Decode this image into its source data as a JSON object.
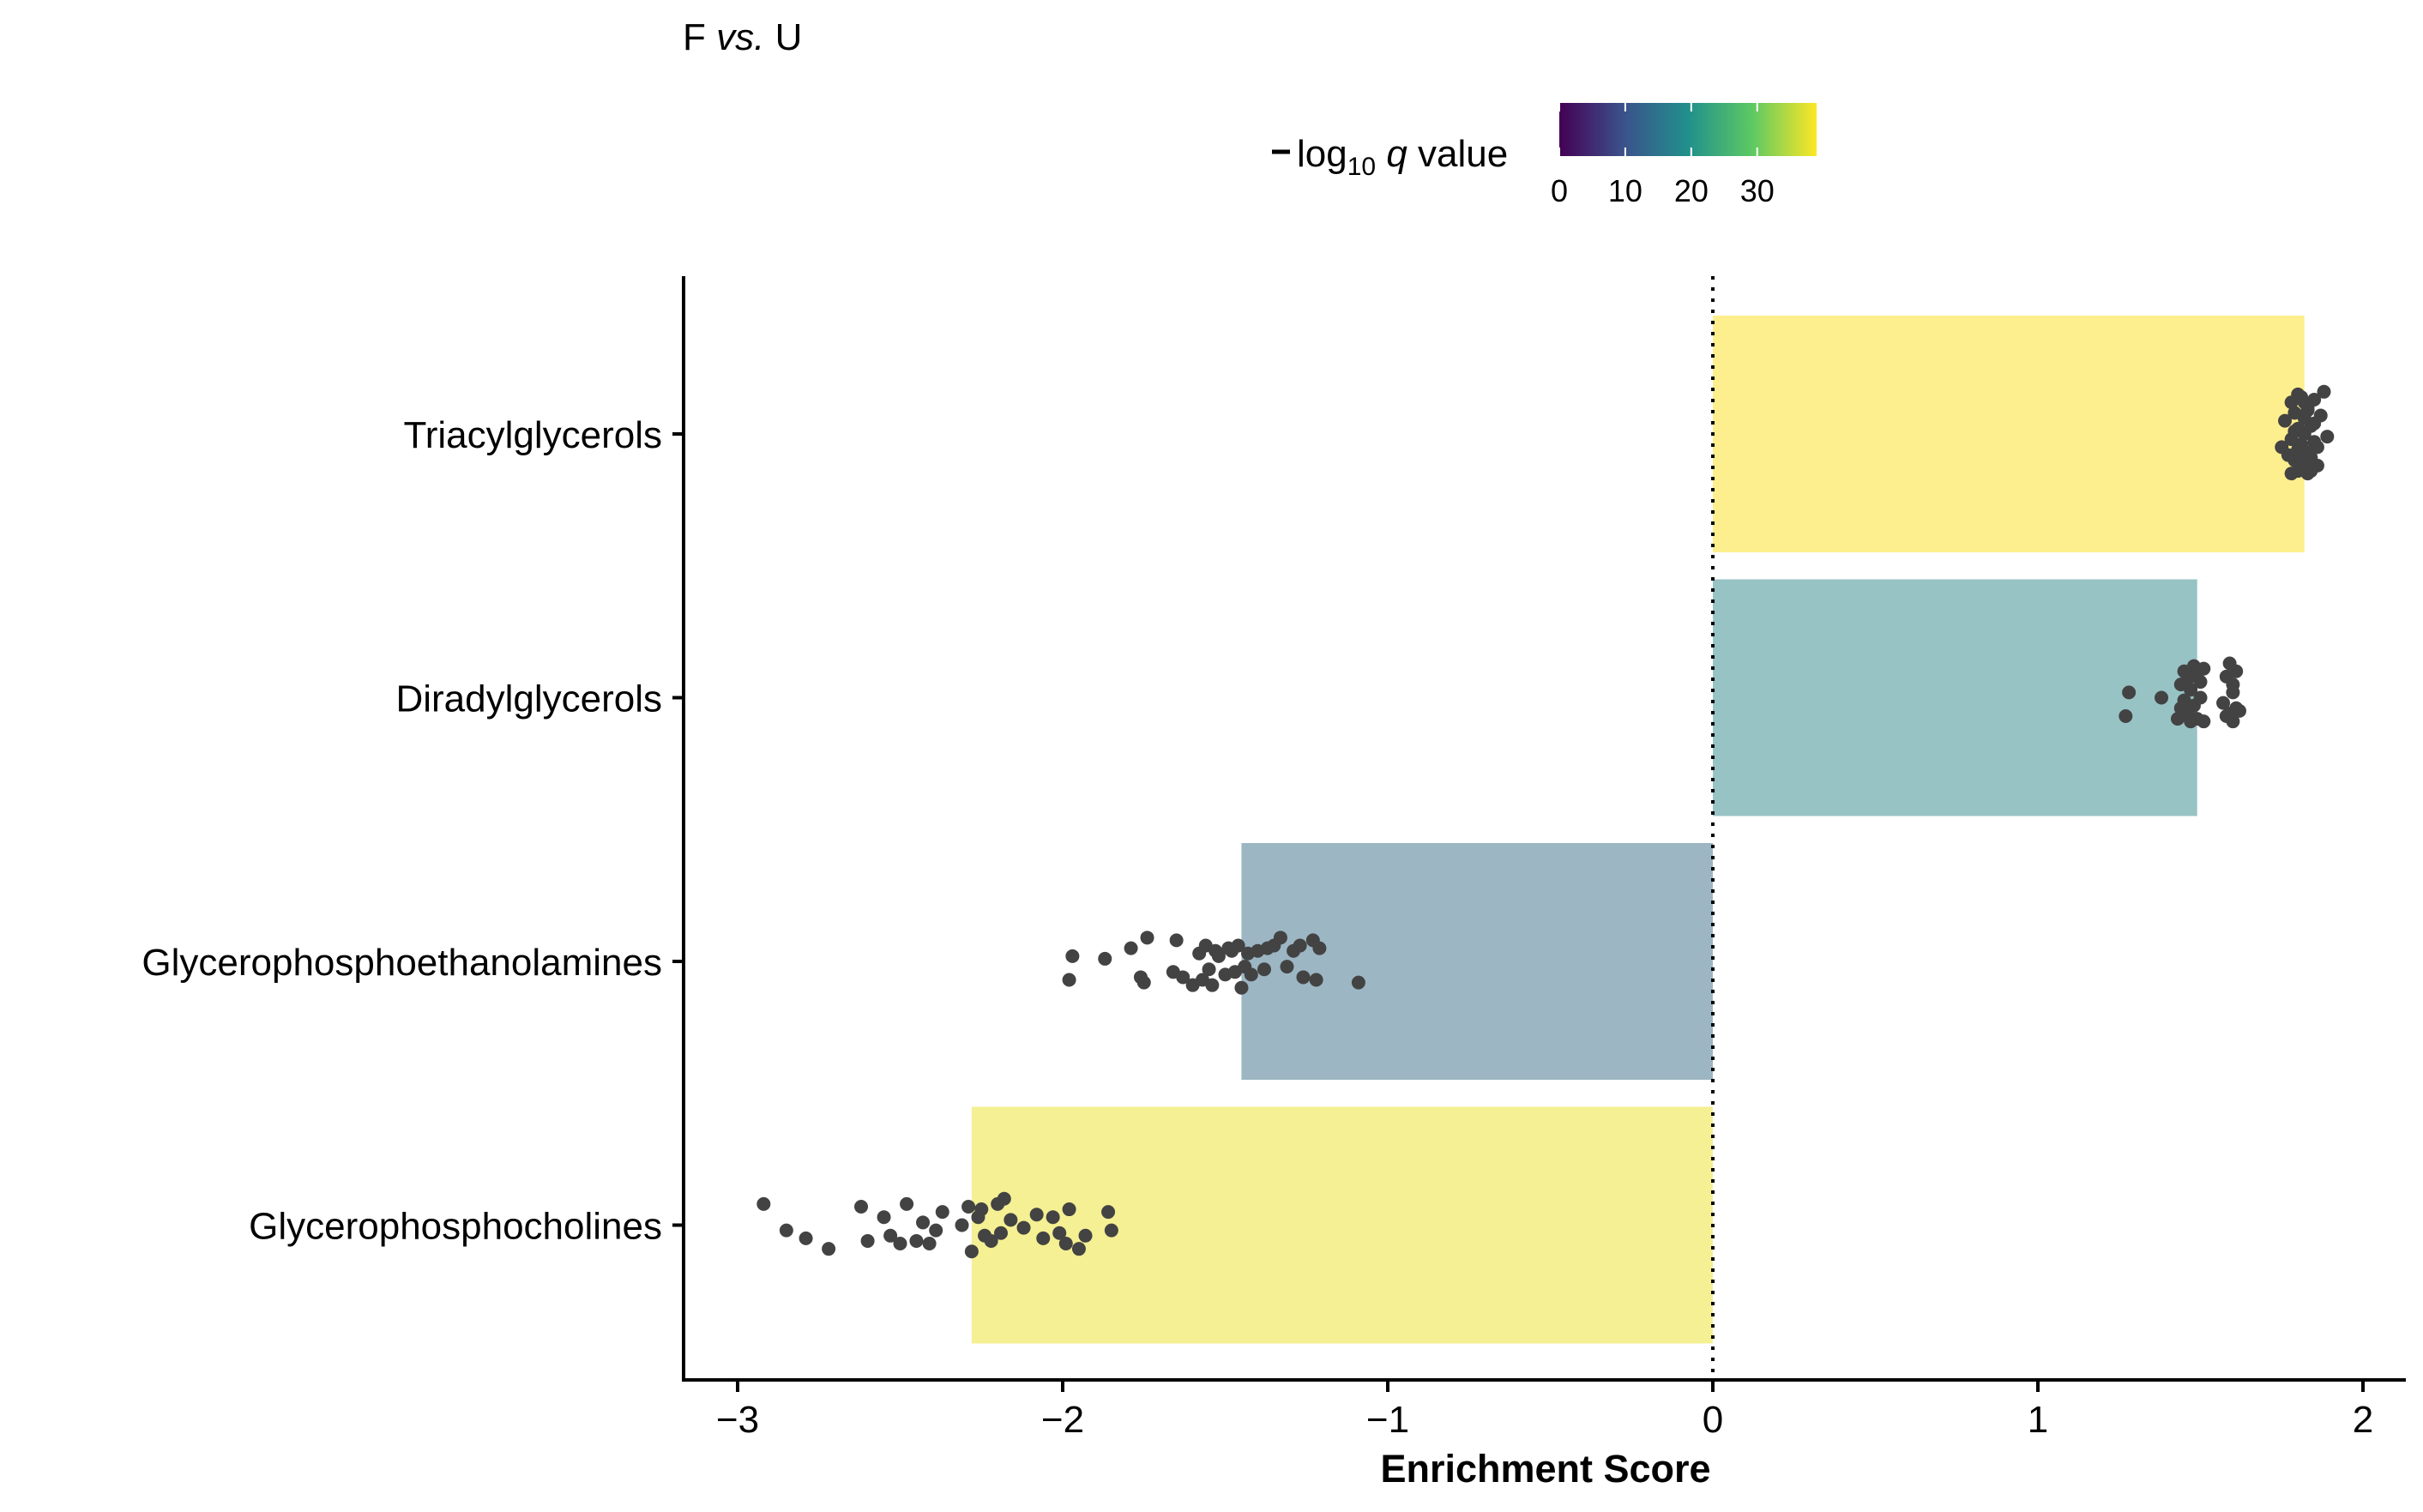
{
  "chart_data": {
    "type": "bar",
    "title": "F vs. U",
    "xlabel": "Enrichment Score",
    "ylabel": "",
    "xlim": [
      -3.15,
      2.15
    ],
    "x_ticks": [
      -3,
      -2,
      -1,
      0,
      1,
      2
    ],
    "x_tick_labels": [
      "−3",
      "−2",
      "−1",
      "0",
      "1",
      "2"
    ],
    "orientation": "horizontal",
    "grid": false,
    "reference_line": {
      "x": 0,
      "style": "dotted"
    },
    "categories": [
      "Triacylglycerols",
      "Diradylglycerols",
      "Glycerophosphoethanolamines",
      "Glycerophosphocholines"
    ],
    "values": [
      1.82,
      1.49,
      -1.45,
      -2.28
    ],
    "bar_color_values": [
      38,
      16,
      12,
      36
    ],
    "bar_colors": [
      "#fdef8d",
      "#98c3c5",
      "#9cb6c3",
      "#f4f093"
    ],
    "legend": {
      "title_main": "log",
      "title_sub": "10",
      "title_italic": "q",
      "title_rest": "value",
      "placement": "top",
      "range": [
        0,
        39
      ],
      "ticks": [
        0,
        10,
        20,
        30
      ],
      "tick_labels": [
        "0",
        "10",
        "20",
        "30"
      ],
      "colorscale": [
        "#440154",
        "#3b528b",
        "#21908c",
        "#5dc963",
        "#fde725"
      ]
    },
    "points": [
      {
        "category": "Triacylglycerols",
        "x": [
          1.75,
          1.76,
          1.77,
          1.78,
          1.78,
          1.79,
          1.79,
          1.8,
          1.8,
          1.8,
          1.81,
          1.81,
          1.81,
          1.82,
          1.82,
          1.82,
          1.83,
          1.83,
          1.83,
          1.84,
          1.84,
          1.85,
          1.85,
          1.86,
          1.87,
          1.88,
          1.89,
          1.78,
          1.8,
          1.82,
          1.84,
          1.86,
          1.79,
          1.81,
          1.83,
          1.85
        ],
        "y": [
          0.05,
          -0.05,
          0.08,
          -0.12,
          0.02,
          0.1,
          -0.08,
          0.14,
          -0.02,
          0.06,
          -0.14,
          0.04,
          0.11,
          -0.06,
          0.13,
          0.0,
          -0.1,
          0.07,
          0.15,
          -0.03,
          0.09,
          -0.13,
          0.03,
          0.12,
          -0.07,
          -0.16,
          0.01,
          0.15,
          -0.15,
          -0.12,
          0.14,
          0.05,
          -0.01,
          0.08,
          -0.09,
          -0.04
        ]
      },
      {
        "category": "Diradylglycerols",
        "x": [
          1.27,
          1.28,
          1.38,
          1.43,
          1.44,
          1.44,
          1.45,
          1.45,
          1.46,
          1.46,
          1.47,
          1.47,
          1.48,
          1.48,
          1.49,
          1.49,
          1.5,
          1.5,
          1.51,
          1.51,
          1.57,
          1.58,
          1.59,
          1.59,
          1.6,
          1.6,
          1.61,
          1.61,
          1.62,
          1.58,
          1.6
        ],
        "y": [
          0.07,
          -0.02,
          0.0,
          0.08,
          -0.05,
          0.04,
          -0.1,
          0.01,
          0.06,
          -0.07,
          0.09,
          -0.03,
          0.03,
          -0.12,
          0.08,
          -0.09,
          0.0,
          -0.06,
          0.09,
          -0.11,
          0.02,
          -0.08,
          0.06,
          -0.13,
          0.09,
          -0.02,
          0.04,
          -0.1,
          0.05,
          0.07,
          -0.05
        ]
      },
      {
        "category": "Glycerophosphoethanolamines",
        "x": [
          -1.98,
          -1.97,
          -1.87,
          -1.79,
          -1.76,
          -1.75,
          -1.74,
          -1.66,
          -1.65,
          -1.63,
          -1.6,
          -1.58,
          -1.57,
          -1.56,
          -1.55,
          -1.54,
          -1.53,
          -1.52,
          -1.5,
          -1.49,
          -1.48,
          -1.47,
          -1.46,
          -1.45,
          -1.44,
          -1.43,
          -1.42,
          -1.4,
          -1.38,
          -1.37,
          -1.35,
          -1.33,
          -1.31,
          -1.29,
          -1.27,
          -1.26,
          -1.23,
          -1.22,
          -1.21,
          -1.09
        ],
        "y": [
          0.07,
          -0.02,
          -0.01,
          -0.05,
          0.06,
          0.08,
          -0.09,
          0.04,
          -0.08,
          0.06,
          0.09,
          -0.03,
          0.07,
          -0.06,
          0.03,
          0.09,
          -0.04,
          -0.02,
          0.05,
          -0.05,
          -0.04,
          0.04,
          -0.06,
          0.1,
          0.02,
          -0.03,
          0.05,
          -0.04,
          0.03,
          -0.05,
          -0.06,
          -0.09,
          0.02,
          -0.04,
          -0.06,
          0.06,
          -0.08,
          0.07,
          -0.05,
          0.08
        ]
      },
      {
        "category": "Glycerophosphocholines",
        "x": [
          -2.92,
          -2.85,
          -2.79,
          -2.72,
          -2.62,
          -2.6,
          -2.55,
          -2.53,
          -2.5,
          -2.48,
          -2.45,
          -2.43,
          -2.41,
          -2.39,
          -2.37,
          -2.31,
          -2.29,
          -2.28,
          -2.26,
          -2.25,
          -2.24,
          -2.22,
          -2.2,
          -2.19,
          -2.18,
          -2.16,
          -2.12,
          -2.08,
          -2.06,
          -2.03,
          -2.01,
          -1.99,
          -1.98,
          -1.95,
          -1.93,
          -1.86,
          -1.85
        ],
        "y": [
          -0.08,
          0.02,
          0.05,
          0.09,
          -0.07,
          0.06,
          -0.03,
          0.04,
          0.07,
          -0.08,
          0.06,
          -0.01,
          0.07,
          0.02,
          -0.05,
          0.0,
          -0.07,
          0.1,
          -0.03,
          -0.06,
          0.04,
          0.06,
          -0.08,
          0.03,
          -0.1,
          -0.02,
          0.01,
          -0.04,
          0.05,
          -0.03,
          0.03,
          0.07,
          -0.06,
          0.09,
          0.04,
          -0.05,
          0.02
        ]
      }
    ]
  }
}
